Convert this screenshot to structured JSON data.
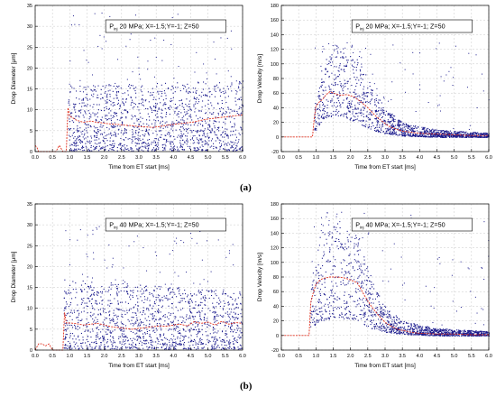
{
  "captions": {
    "a": "(a)",
    "b": "(b)"
  },
  "chart_data": [
    {
      "type": "scatter",
      "legend": {
        "pinj": "P",
        "sub": "inj",
        "rest": " 20 MPa; X=-1.5;Y=-1; Z=50"
      },
      "xlabel": "Time from ET start [ms]",
      "ylabel": "Drop Diameter [μm]",
      "xlim": [
        0,
        6
      ],
      "ylim": [
        0,
        35
      ],
      "xticks": [
        "0.0",
        "0.5",
        "1.0",
        "1.5",
        "2.0",
        "2.5",
        "3.0",
        "3.5",
        "4.0",
        "4.5",
        "5.0",
        "5.5",
        "6.0"
      ],
      "yticks": [
        "0",
        "5",
        "10",
        "15",
        "20",
        "25",
        "30",
        "35"
      ],
      "grid": true,
      "colors": {
        "points": "#1a1a8c",
        "mean": "#e0301e"
      },
      "scatter": {
        "start": 0.95,
        "band": [
          [
            1.0,
            0.3,
            16
          ],
          [
            6.0,
            0.3,
            17
          ]
        ],
        "outlier_max": 34
      },
      "mean_line": {
        "x": [
          0.0,
          0.05,
          0.1,
          0.2,
          0.3,
          0.4,
          0.5,
          0.6,
          0.7,
          0.8,
          0.85,
          0.9,
          0.95,
          1.0,
          1.1,
          1.2,
          1.4,
          1.6,
          1.8,
          2.0,
          2.2,
          2.4,
          2.6,
          2.8,
          3.0,
          3.2,
          3.4,
          3.6,
          3.8,
          4.0,
          4.2,
          4.4,
          4.6,
          4.8,
          5.0,
          5.2,
          5.4,
          5.6,
          5.8,
          6.0
        ],
        "y": [
          1.5,
          1.0,
          0.0,
          0.0,
          0.0,
          0.0,
          0.0,
          0.0,
          1.5,
          0.0,
          0.0,
          0.0,
          10.5,
          8.5,
          8.0,
          7.5,
          7.0,
          7.3,
          7.0,
          6.8,
          6.6,
          6.5,
          6.3,
          6.2,
          6.0,
          5.9,
          5.8,
          6.0,
          6.3,
          6.5,
          6.7,
          6.9,
          7.1,
          7.5,
          7.8,
          8.0,
          8.2,
          8.4,
          8.6,
          8.8
        ]
      }
    },
    {
      "type": "scatter",
      "legend": {
        "pinj": "P",
        "sub": "inj",
        "rest": " 20 MPa; X=-1.5;Y=-1; Z=50"
      },
      "xlabel": "Time from ET start [ms]",
      "ylabel": "Drop Velocity [m/s]",
      "xlim": [
        0,
        6
      ],
      "ylim": [
        -20,
        180
      ],
      "xticks": [
        "0.0",
        "0.5",
        "1.0",
        "1.5",
        "2.0",
        "2.5",
        "3.0",
        "3.5",
        "4.0",
        "4.5",
        "5.0",
        "5.5",
        "6.0"
      ],
      "yticks": [
        "-20",
        "0",
        "20",
        "40",
        "60",
        "80",
        "100",
        "120",
        "140",
        "160",
        "180"
      ],
      "grid": true,
      "colors": {
        "points": "#1a1a8c",
        "mean": "#e0301e"
      },
      "scatter": {
        "start": 0.95,
        "band": [
          [
            1.0,
            10,
            55
          ],
          [
            1.2,
            25,
            105
          ],
          [
            1.6,
            30,
            120
          ],
          [
            2.2,
            20,
            110
          ],
          [
            2.6,
            10,
            70
          ],
          [
            3.0,
            5,
            40
          ],
          [
            3.5,
            2,
            20
          ],
          [
            4.5,
            0,
            10
          ],
          [
            6.0,
            0,
            6
          ]
        ],
        "outlier_max": 130
      },
      "mean_line": {
        "x": [
          0.0,
          0.5,
          0.9,
          0.95,
          1.0,
          1.1,
          1.2,
          1.3,
          1.4,
          1.5,
          1.7,
          1.9,
          2.1,
          2.3,
          2.5,
          2.7,
          2.9,
          3.1,
          3.3,
          3.5,
          3.8,
          4.0,
          4.5,
          5.0,
          5.5,
          6.0
        ],
        "y": [
          0,
          0,
          0,
          25,
          42,
          48,
          52,
          58,
          62,
          60,
          57,
          58,
          55,
          48,
          40,
          30,
          22,
          15,
          11,
          8,
          6,
          5,
          4,
          3,
          2,
          2
        ]
      }
    },
    {
      "type": "scatter",
      "legend": {
        "pinj": "P",
        "sub": "inj",
        "rest": " 40 MPa; X=-1.5;Y=-1; Z=50"
      },
      "xlabel": "Time from ET start [ms]",
      "ylabel": "Drop Diameter [μm]",
      "xlim": [
        0,
        6
      ],
      "ylim": [
        0,
        35
      ],
      "xticks": [
        "0.0",
        "0.5",
        "1.0",
        "1.5",
        "2.0",
        "2.5",
        "3.0",
        "3.5",
        "4.0",
        "4.5",
        "5.0",
        "5.5",
        "6.0"
      ],
      "yticks": [
        "0",
        "5",
        "10",
        "15",
        "20",
        "25",
        "30",
        "35"
      ],
      "grid": true,
      "colors": {
        "points": "#1a1a8c",
        "mean": "#e0301e"
      },
      "scatter": {
        "start": 0.82,
        "band": [
          [
            0.85,
            0.3,
            17
          ],
          [
            6.0,
            0.3,
            14
          ]
        ],
        "outlier_max": 30
      },
      "mean_line": {
        "x": [
          0.0,
          0.1,
          0.2,
          0.3,
          0.4,
          0.5,
          0.6,
          0.7,
          0.8,
          0.85,
          0.9,
          1.0,
          1.2,
          1.4,
          1.6,
          1.8,
          2.0,
          2.2,
          2.4,
          2.6,
          2.8,
          3.0,
          3.2,
          3.4,
          3.6,
          3.8,
          4.0,
          4.2,
          4.4,
          4.6,
          4.8,
          5.0,
          5.2,
          5.4,
          5.6,
          5.8,
          6.0
        ],
        "y": [
          0.0,
          1.5,
          1.5,
          1.0,
          1.5,
          0.0,
          0.0,
          0.0,
          0.0,
          9.0,
          6.5,
          6.5,
          6.3,
          6.0,
          6.2,
          6.4,
          6.0,
          5.6,
          5.4,
          5.2,
          5.0,
          5.2,
          5.4,
          5.6,
          5.8,
          5.7,
          6.0,
          6.2,
          5.8,
          6.8,
          6.4,
          6.7,
          6.0,
          6.9,
          6.2,
          6.6,
          6.4
        ]
      }
    },
    {
      "type": "scatter",
      "legend": {
        "pinj": "P",
        "sub": "inj",
        "rest": " 40 MPa; X=-1.5;Y=-1; Z=50"
      },
      "xlabel": "Time from ET start [ms]",
      "ylabel": "Drop Velocity [m/s]",
      "xlim": [
        0,
        6
      ],
      "ylim": [
        -20,
        180
      ],
      "xticks": [
        "0.0",
        "0.5",
        "1.0",
        "1.5",
        "2.0",
        "2.5",
        "3.0",
        "3.5",
        "4.0",
        "4.5",
        "5.0",
        "5.5",
        "6.0"
      ],
      "yticks": [
        "-20",
        "0",
        "20",
        "40",
        "60",
        "80",
        "100",
        "120",
        "140",
        "160",
        "180"
      ],
      "grid": true,
      "colors": {
        "points": "#1a1a8c",
        "mean": "#e0301e"
      },
      "scatter": {
        "start": 0.82,
        "band": [
          [
            0.85,
            10,
            70
          ],
          [
            1.1,
            20,
            140
          ],
          [
            1.6,
            25,
            155
          ],
          [
            2.2,
            20,
            140
          ],
          [
            2.6,
            10,
            80
          ],
          [
            3.0,
            5,
            40
          ],
          [
            3.5,
            2,
            20
          ],
          [
            4.5,
            0,
            10
          ],
          [
            6.0,
            0,
            6
          ]
        ],
        "outlier_max": 170
      },
      "mean_line": {
        "x": [
          0.0,
          0.5,
          0.8,
          0.85,
          0.9,
          1.0,
          1.1,
          1.2,
          1.4,
          1.6,
          1.8,
          2.0,
          2.2,
          2.4,
          2.6,
          2.8,
          3.0,
          3.2,
          3.4,
          3.6,
          3.8,
          4.0,
          4.5,
          5.0,
          5.5,
          6.0
        ],
        "y": [
          0,
          0,
          0,
          45,
          55,
          70,
          75,
          78,
          80,
          80,
          79,
          76,
          72,
          55,
          40,
          28,
          18,
          12,
          8,
          6,
          4,
          3,
          2,
          2,
          1,
          1
        ]
      }
    }
  ]
}
